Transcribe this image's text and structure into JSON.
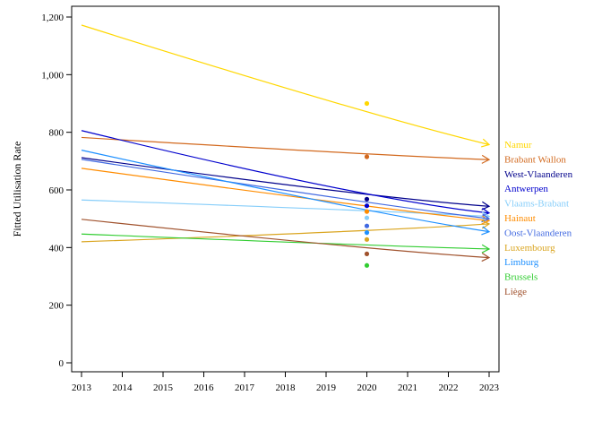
{
  "chart_data": {
    "type": "line",
    "ylabel": "Fitted Utilisation Rate",
    "xlabel": "",
    "xlim": [
      2013,
      2023
    ],
    "ylim": [
      0,
      1200
    ],
    "x_ticks": [
      "2013",
      "2014",
      "2015",
      "2016",
      "2017",
      "2018",
      "2019",
      "2020",
      "2021",
      "2022",
      "2023"
    ],
    "y_ticks": [
      {
        "value": 0,
        "label": "0"
      },
      {
        "value": 200,
        "label": "200"
      },
      {
        "value": 400,
        "label": "400"
      },
      {
        "value": 600,
        "label": "600"
      },
      {
        "value": 800,
        "label": "800"
      },
      {
        "value": 1000,
        "label": "1,000"
      },
      {
        "value": 1200,
        "label": "1,200"
      }
    ],
    "observed_year": 2020,
    "series": [
      {
        "name": "Namur",
        "color": "#ffd700",
        "x": [
          2013,
          2020,
          2023
        ],
        "y": [
          1172,
          860,
          757
        ],
        "observed": 900
      },
      {
        "name": "Brabant Wallon",
        "color": "#d2691e",
        "x": [
          2013,
          2020,
          2023
        ],
        "y": [
          782,
          722,
          705
        ],
        "observed": 715
      },
      {
        "name": "West-Vlaanderen",
        "color": "#00008b",
        "x": [
          2013,
          2020,
          2023
        ],
        "y": [
          712,
          575,
          543
        ],
        "observed": 568
      },
      {
        "name": "Antwerpen",
        "color": "#0000cd",
        "x": [
          2013,
          2020,
          2023
        ],
        "y": [
          806,
          565,
          520
        ],
        "observed": 545
      },
      {
        "name": "Vlaams-Brabant",
        "color": "#87cefa",
        "x": [
          2013,
          2020,
          2023
        ],
        "y": [
          565,
          530,
          508
        ],
        "observed": 503
      },
      {
        "name": "Hainaut",
        "color": "#ff8c00",
        "x": [
          2013,
          2020,
          2023
        ],
        "y": [
          675,
          540,
          493
        ],
        "observed": 525
      },
      {
        "name": "Oost-Vlaanderen",
        "color": "#4169e1",
        "x": [
          2013,
          2020,
          2023
        ],
        "y": [
          706,
          553,
          500
        ],
        "observed": 475
      },
      {
        "name": "Luxembourg",
        "color": "#daa520",
        "x": [
          2013,
          2020,
          2023
        ],
        "y": [
          420,
          455,
          482
        ],
        "observed": 428
      },
      {
        "name": "Limburg",
        "color": "#1e90ff",
        "x": [
          2013,
          2020,
          2023
        ],
        "y": [
          738,
          520,
          455
        ],
        "observed": 452
      },
      {
        "name": "Brussels",
        "color": "#32cd32",
        "x": [
          2013,
          2020,
          2023
        ],
        "y": [
          447,
          407,
          395
        ],
        "observed": 338
      },
      {
        "name": "Liège",
        "color": "#a0522d",
        "x": [
          2013,
          2020,
          2023
        ],
        "y": [
          498,
          393,
          365
        ],
        "observed": 378
      }
    ]
  }
}
